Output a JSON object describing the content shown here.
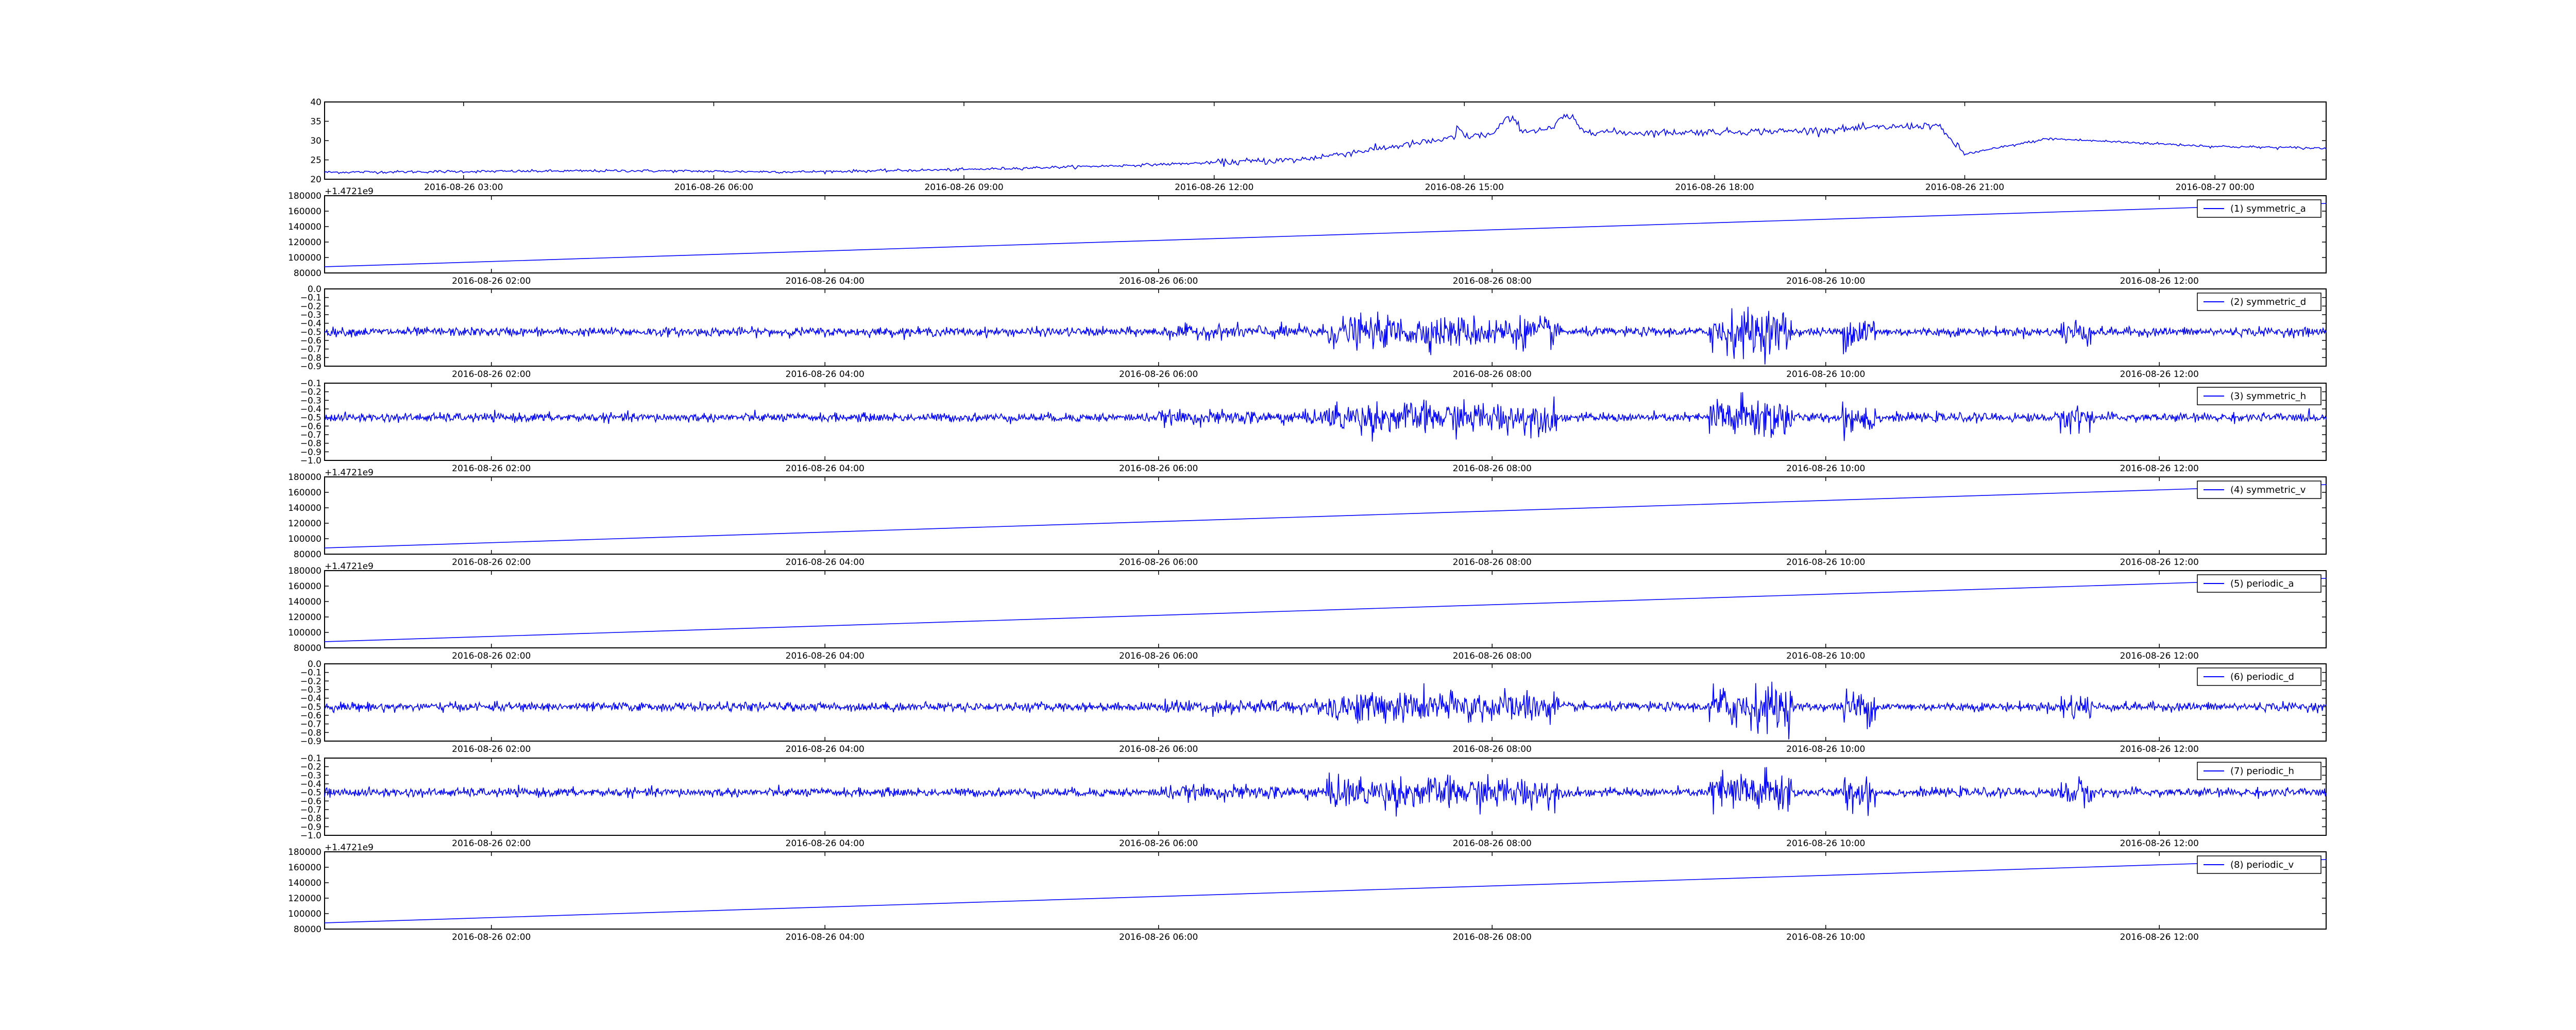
{
  "chart_data": [
    {
      "type": "line",
      "series": [
        {
          "values": "generated-by-script"
        }
      ],
      "xticks": [
        "2016-08-26 03:00",
        "2016-08-26 06:00",
        "2016-08-26 09:00",
        "2016-08-26 12:00",
        "2016-08-26 15:00",
        "2016-08-26 18:00",
        "2016-08-26 21:00",
        "2016-08-27 00:00"
      ],
      "yticks": [
        "20",
        "25",
        "30",
        "35",
        "40"
      ],
      "ylim": [
        20,
        40
      ],
      "x": [
        "2016-08-26 01:20",
        "2016-08-26 03:00",
        "2016-08-26 05:00",
        "2016-08-26 07:00",
        "2016-08-26 09:00",
        "2016-08-26 11:00",
        "2016-08-26 13:00",
        "2016-08-26 14:30",
        "2016-08-26 15:00",
        "2016-08-26 16:00",
        "2016-08-26 17:00",
        "2016-08-26 19:00",
        "2016-08-26 20:40",
        "2016-08-26 21:00",
        "2016-08-26 22:00",
        "2016-08-27 00:00",
        "2016-08-27 01:20"
      ],
      "y": [
        21.8,
        22.0,
        22.2,
        21.9,
        22.5,
        23.6,
        25.0,
        29.5,
        31.0,
        33.0,
        32.0,
        32.5,
        34.0,
        26.5,
        30.5,
        28.5,
        28.0
      ]
    },
    {
      "type": "line",
      "legend": "(1) symmetric_a",
      "offset_label": "+1.4721e9",
      "yticks": [
        "80000",
        "100000",
        "120000",
        "140000",
        "160000",
        "180000"
      ],
      "ylim": [
        80000,
        180000
      ],
      "x": [
        "2016-08-26 01:00",
        "2016-08-26 13:00"
      ],
      "y": [
        88000,
        170000
      ],
      "xticks": [
        "2016-08-26 02:00",
        "2016-08-26 04:00",
        "2016-08-26 06:00",
        "2016-08-26 08:00",
        "2016-08-26 10:00",
        "2016-08-26 12:00"
      ]
    },
    {
      "type": "line",
      "legend": "(2) symmetric_d",
      "yticks": [
        "0.0",
        "−0.1",
        "−0.2",
        "−0.3",
        "−0.4",
        "−0.5",
        "−0.6",
        "−0.7",
        "−0.8",
        "−0.9"
      ],
      "ylim": [
        -0.9,
        0.0
      ],
      "baseline": -0.5,
      "xticks": [
        "2016-08-26 02:00",
        "2016-08-26 04:00",
        "2016-08-26 06:00",
        "2016-08-26 08:00",
        "2016-08-26 10:00",
        "2016-08-26 12:00"
      ]
    },
    {
      "type": "line",
      "legend": "(3) symmetric_h",
      "yticks": [
        "−0.1",
        "−0.2",
        "−0.3",
        "−0.4",
        "−0.5",
        "−0.6",
        "−0.7",
        "−0.8",
        "−0.9",
        "−1.0"
      ],
      "ylim": [
        -1.0,
        -0.1
      ],
      "baseline": -0.5,
      "xticks": [
        "2016-08-26 02:00",
        "2016-08-26 04:00",
        "2016-08-26 06:00",
        "2016-08-26 08:00",
        "2016-08-26 10:00",
        "2016-08-26 12:00"
      ]
    },
    {
      "type": "line",
      "legend": "(4) symmetric_v",
      "offset_label": "+1.4721e9",
      "yticks": [
        "80000",
        "100000",
        "120000",
        "140000",
        "160000",
        "180000"
      ],
      "ylim": [
        80000,
        180000
      ],
      "x": [
        "2016-08-26 01:00",
        "2016-08-26 13:00"
      ],
      "y": [
        88000,
        170000
      ],
      "xticks": [
        "2016-08-26 02:00",
        "2016-08-26 04:00",
        "2016-08-26 06:00",
        "2016-08-26 08:00",
        "2016-08-26 10:00",
        "2016-08-26 12:00"
      ]
    },
    {
      "type": "line",
      "legend": "(5) periodic_a",
      "offset_label": "+1.4721e9",
      "yticks": [
        "80000",
        "100000",
        "120000",
        "140000",
        "160000",
        "180000"
      ],
      "ylim": [
        80000,
        180000
      ],
      "x": [
        "2016-08-26 01:00",
        "2016-08-26 13:00"
      ],
      "y": [
        88000,
        170000
      ],
      "xticks": [
        "2016-08-26 02:00",
        "2016-08-26 04:00",
        "2016-08-26 06:00",
        "2016-08-26 08:00",
        "2016-08-26 10:00",
        "2016-08-26 12:00"
      ]
    },
    {
      "type": "line",
      "legend": "(6) periodic_d",
      "yticks": [
        "0.0",
        "−0.1",
        "−0.2",
        "−0.3",
        "−0.4",
        "−0.5",
        "−0.6",
        "−0.7",
        "−0.8",
        "−0.9"
      ],
      "ylim": [
        -0.9,
        0.0
      ],
      "baseline": -0.5,
      "xticks": [
        "2016-08-26 02:00",
        "2016-08-26 04:00",
        "2016-08-26 06:00",
        "2016-08-26 08:00",
        "2016-08-26 10:00",
        "2016-08-26 12:00"
      ]
    },
    {
      "type": "line",
      "legend": "(7) periodic_h",
      "yticks": [
        "−0.1",
        "−0.2",
        "−0.3",
        "−0.4",
        "−0.5",
        "−0.6",
        "−0.7",
        "−0.8",
        "−0.9",
        "−1.0"
      ],
      "ylim": [
        -1.0,
        -0.1
      ],
      "baseline": -0.5,
      "xticks": [
        "2016-08-26 02:00",
        "2016-08-26 04:00",
        "2016-08-26 06:00",
        "2016-08-26 08:00",
        "2016-08-26 10:00",
        "2016-08-26 12:00"
      ]
    },
    {
      "type": "line",
      "legend": "(8) periodic_v",
      "offset_label": "+1.4721e9",
      "yticks": [
        "80000",
        "100000",
        "120000",
        "140000",
        "160000",
        "180000"
      ],
      "ylim": [
        80000,
        180000
      ],
      "x": [
        "2016-08-26 01:00",
        "2016-08-26 13:00"
      ],
      "y": [
        88000,
        170000
      ],
      "xticks": [
        "2016-08-26 02:00",
        "2016-08-26 04:00",
        "2016-08-26 06:00",
        "2016-08-26 08:00",
        "2016-08-26 10:00",
        "2016-08-26 12:00"
      ]
    }
  ],
  "colors": {
    "line": "#0000ff",
    "axis": "#000000",
    "background": "#ffffff"
  }
}
